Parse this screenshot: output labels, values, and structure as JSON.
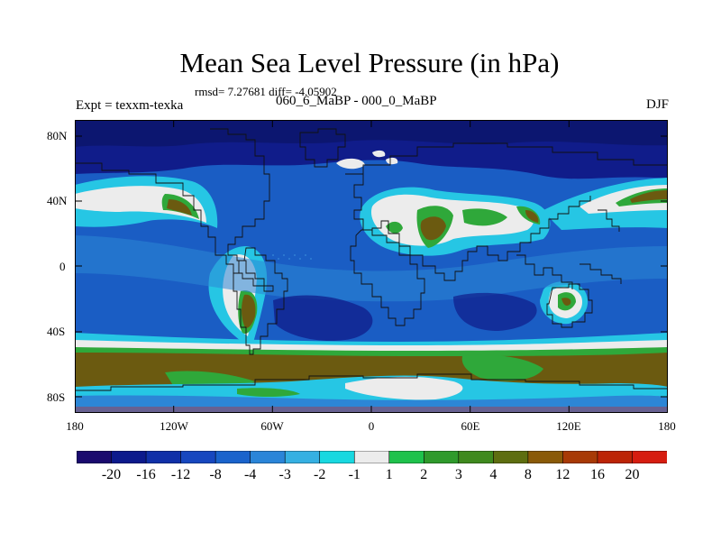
{
  "title": "Mean Sea Level Pressure (in hPa)",
  "stats_line": "rmsd= 7.27681 diff= -4.05902",
  "left_label": "Expt = texxm-texka",
  "center_label": "060_6_MaBP - 000_0_MaBP",
  "right_label": "DJF",
  "latitude_ticks": [
    "80N",
    "40N",
    "0",
    "40S",
    "80S"
  ],
  "longitude_ticks": [
    "180",
    "120W",
    "60W",
    "0",
    "60E",
    "120E",
    "180"
  ],
  "colorbar": {
    "colors": [
      "#1a0a6e",
      "#0c1a8c",
      "#1030a8",
      "#1747bf",
      "#1a63cc",
      "#2a85d8",
      "#35b0e2",
      "#18d8e0",
      "#ececec",
      "#1fc24c",
      "#2f9a2c",
      "#3f8a1e",
      "#5e6e10",
      "#8a5a08",
      "#a83a06",
      "#bc2406",
      "#d61d10"
    ],
    "labels": [
      "-20",
      "-16",
      "-12",
      "-8",
      "-4",
      "-3",
      "-2",
      "-1",
      "1",
      "2",
      "3",
      "4",
      "8",
      "12",
      "16",
      "20"
    ]
  },
  "palette": {
    "deep": "#101c8a",
    "mid": "#1a5dc4",
    "light": "#2c86d6",
    "cyan": "#26c6e4",
    "white": "#ececec",
    "green": "#2fa83a",
    "brown": "#6b5a10",
    "darkblue": "#0c1670"
  }
}
